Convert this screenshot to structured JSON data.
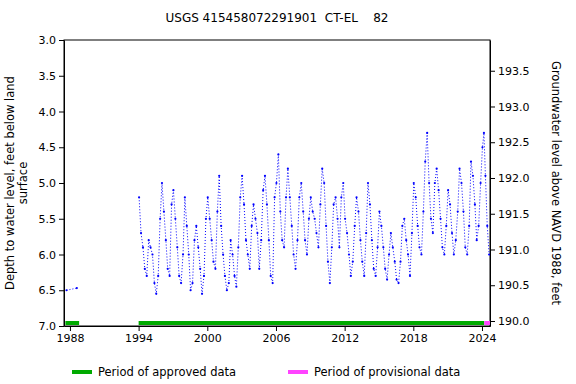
{
  "chart_data": {
    "type": "line",
    "title": "USGS 415458072291901  CT-EL    82",
    "y_label": "Depth to water level, feet below land surface",
    "y2_label": "Groundwater level above NAVD 1988, feet",
    "xlim": [
      1987.48,
      2024.7
    ],
    "xticks": [
      1988,
      1994,
      2000,
      2006,
      2012,
      2018,
      2024
    ],
    "ylim": [
      3.0,
      7.0
    ],
    "yticks": [
      {
        "value": 3.0,
        "label": "3.0"
      },
      {
        "value": 3.5,
        "label": "3.5"
      },
      {
        "value": 4.0,
        "label": "4.0"
      },
      {
        "value": 4.5,
        "label": "4.5"
      },
      {
        "value": 5.0,
        "label": "5.0"
      },
      {
        "value": 5.5,
        "label": "5.5"
      },
      {
        "value": 6.0,
        "label": "6.0"
      },
      {
        "value": 6.5,
        "label": "6.5"
      },
      {
        "value": 7.0,
        "label": "7.0"
      }
    ],
    "y2lim": [
      189.93,
      193.93
    ],
    "y2ticks": [
      {
        "value": 190.0,
        "label": "190.0"
      },
      {
        "value": 190.5,
        "label": "190.5"
      },
      {
        "value": 191.0,
        "label": "191.0"
      },
      {
        "value": 191.5,
        "label": "191.5"
      },
      {
        "value": 192.0,
        "label": "192.0"
      },
      {
        "value": 192.5,
        "label": "192.5"
      },
      {
        "value": 193.0,
        "label": "193.0"
      },
      {
        "value": 193.5,
        "label": "193.5"
      }
    ],
    "legend": "bottom",
    "x": [
      1987.7,
      1988.6,
      1991.0,
      1994.04,
      1994.21,
      1994.38,
      1994.54,
      1994.71,
      1994.88,
      1995.04,
      1995.21,
      1995.38,
      1995.54,
      1995.71,
      1995.88,
      1996.04,
      1996.21,
      1996.38,
      1996.54,
      1996.71,
      1996.88,
      1997.04,
      1997.21,
      1997.38,
      1997.54,
      1997.71,
      1997.88,
      1998.04,
      1998.21,
      1998.38,
      1998.54,
      1998.71,
      1998.88,
      1999.04,
      1999.21,
      1999.38,
      1999.54,
      1999.71,
      1999.88,
      2000.04,
      2000.21,
      2000.38,
      2000.54,
      2000.71,
      2000.88,
      2001.04,
      2001.21,
      2001.38,
      2001.54,
      2001.71,
      2001.88,
      2002.04,
      2002.21,
      2002.38,
      2002.54,
      2002.71,
      2002.88,
      2003.04,
      2003.21,
      2003.38,
      2003.54,
      2003.71,
      2003.88,
      2004.04,
      2004.21,
      2004.38,
      2004.54,
      2004.71,
      2004.88,
      2005.04,
      2005.21,
      2005.38,
      2005.54,
      2005.71,
      2005.88,
      2006.04,
      2006.21,
      2006.38,
      2006.54,
      2006.71,
      2006.88,
      2007.04,
      2007.21,
      2007.38,
      2007.54,
      2007.71,
      2007.88,
      2008.04,
      2008.21,
      2008.38,
      2008.54,
      2008.71,
      2008.88,
      2009.04,
      2009.21,
      2009.38,
      2009.54,
      2009.71,
      2009.88,
      2010.04,
      2010.21,
      2010.38,
      2010.54,
      2010.71,
      2010.88,
      2011.04,
      2011.21,
      2011.38,
      2011.54,
      2011.71,
      2011.88,
      2012.04,
      2012.21,
      2012.38,
      2012.54,
      2012.71,
      2012.88,
      2013.04,
      2013.21,
      2013.38,
      2013.54,
      2013.71,
      2013.88,
      2014.04,
      2014.21,
      2014.38,
      2014.54,
      2014.71,
      2014.88,
      2015.04,
      2015.21,
      2015.38,
      2015.54,
      2015.71,
      2015.88,
      2016.04,
      2016.21,
      2016.38,
      2016.54,
      2016.71,
      2016.88,
      2017.04,
      2017.21,
      2017.38,
      2017.54,
      2017.71,
      2017.88,
      2018.04,
      2018.21,
      2018.38,
      2018.54,
      2018.71,
      2018.88,
      2019.04,
      2019.21,
      2019.38,
      2019.54,
      2019.71,
      2019.88,
      2020.04,
      2020.21,
      2020.38,
      2020.54,
      2020.71,
      2020.88,
      2021.04,
      2021.21,
      2021.38,
      2021.54,
      2021.71,
      2021.88,
      2022.04,
      2022.21,
      2022.38,
      2022.54,
      2022.71,
      2022.88,
      2023.04,
      2023.21,
      2023.38,
      2023.54,
      2023.71,
      2023.88,
      2024.04,
      2024.17,
      2024.3,
      2024.46,
      2024.62
    ],
    "series": [
      {
        "color": "#0000ff",
        "marker": "point",
        "line_style": "dotted",
        "values": [
          6.5,
          6.47,
          null,
          5.2,
          5.7,
          5.9,
          6.2,
          6.3,
          5.8,
          5.9,
          6.0,
          6.4,
          6.55,
          6.3,
          5.5,
          5.0,
          5.4,
          5.8,
          6.2,
          6.3,
          5.3,
          5.1,
          5.5,
          5.9,
          6.3,
          6.4,
          6.0,
          5.2,
          5.6,
          6.0,
          6.5,
          6.4,
          5.8,
          5.6,
          5.9,
          6.2,
          6.55,
          6.3,
          5.5,
          5.2,
          5.5,
          5.8,
          6.1,
          6.2,
          5.4,
          4.9,
          5.6,
          6.0,
          6.3,
          6.5,
          6.4,
          5.8,
          6.0,
          6.3,
          6.45,
          5.9,
          5.2,
          4.9,
          5.3,
          5.8,
          6.0,
          6.2,
          5.6,
          5.3,
          5.5,
          5.7,
          6.2,
          5.8,
          5.1,
          4.9,
          5.3,
          5.8,
          6.3,
          6.4,
          5.2,
          5.0,
          4.6,
          5.4,
          5.8,
          5.9,
          5.2,
          4.8,
          5.2,
          5.6,
          6.0,
          6.2,
          5.8,
          5.2,
          5.0,
          5.4,
          5.8,
          6.0,
          5.5,
          5.2,
          5.4,
          5.5,
          5.7,
          5.9,
          5.3,
          4.8,
          5.0,
          5.6,
          6.1,
          6.4,
          5.9,
          5.3,
          5.2,
          5.5,
          5.9,
          5.2,
          5.0,
          5.5,
          5.7,
          6.0,
          6.3,
          6.1,
          5.6,
          5.2,
          5.4,
          5.8,
          6.1,
          6.3,
          5.7,
          5.0,
          5.3,
          5.8,
          6.2,
          6.3,
          5.9,
          5.4,
          5.6,
          5.9,
          6.2,
          6.35,
          6.0,
          5.7,
          5.9,
          6.1,
          6.35,
          6.4,
          6.1,
          5.6,
          5.5,
          5.8,
          6.0,
          6.3,
          5.7,
          5.0,
          5.2,
          5.6,
          5.9,
          6.0,
          5.4,
          4.7,
          4.3,
          5.0,
          5.5,
          5.7,
          5.0,
          4.8,
          5.1,
          5.5,
          5.9,
          6.0,
          5.6,
          5.1,
          5.3,
          5.7,
          6.0,
          5.8,
          5.4,
          4.8,
          5.0,
          5.4,
          5.9,
          6.0,
          5.6,
          4.7,
          4.9,
          5.3,
          5.8,
          5.6,
          5.0,
          4.5,
          4.3,
          4.9,
          5.6,
          6.0
        ]
      }
    ],
    "periods": [
      {
        "name": "Period of approved data",
        "color": "#00aa00",
        "ranges": [
          [
            1987.6,
            1988.8
          ],
          [
            1994.0,
            2024.2
          ]
        ]
      },
      {
        "name": "Period of provisional data",
        "color": "#ff44ff",
        "ranges": [
          [
            2024.2,
            2024.7
          ]
        ]
      }
    ]
  }
}
